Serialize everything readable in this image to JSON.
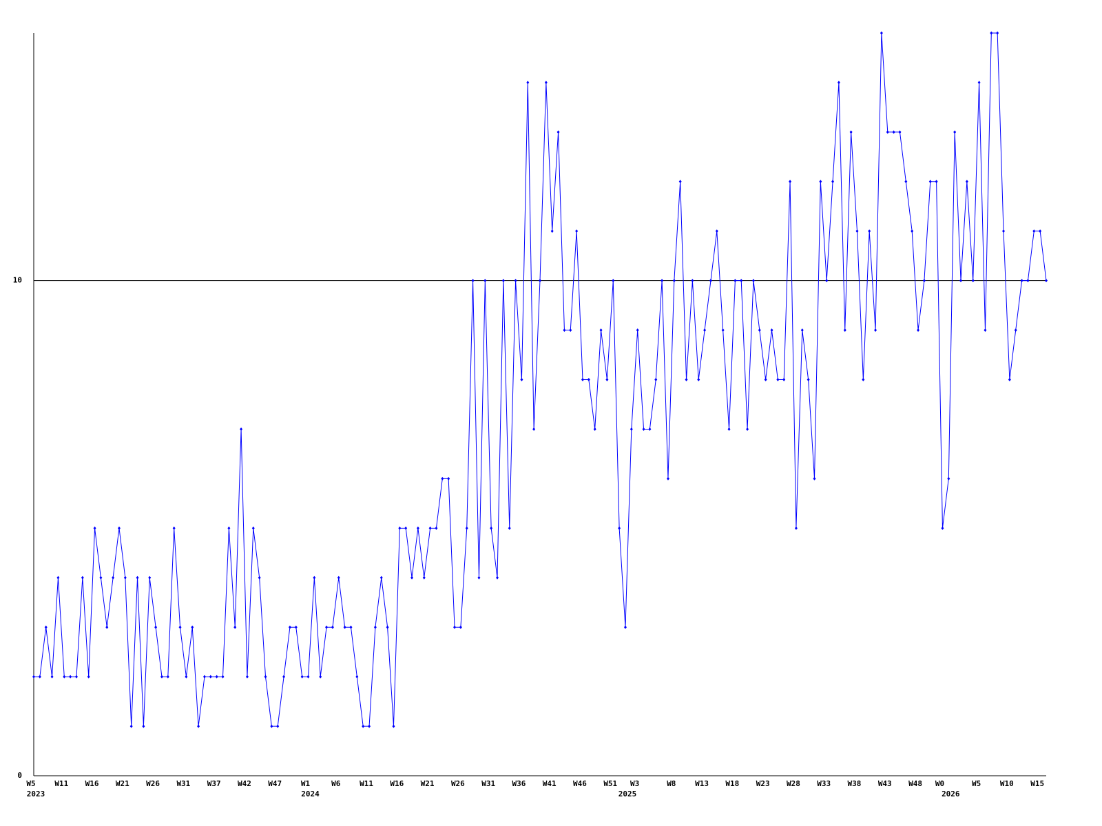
{
  "chart_data": {
    "type": "line",
    "categories": [
      "W5",
      null,
      null,
      null,
      null,
      "W11",
      null,
      null,
      null,
      null,
      "W16",
      null,
      null,
      null,
      null,
      "W21",
      null,
      null,
      null,
      null,
      "W26",
      null,
      null,
      null,
      null,
      "W31",
      null,
      null,
      null,
      null,
      "W37",
      null,
      null,
      null,
      null,
      "W42",
      null,
      null,
      null,
      null,
      "W47",
      null,
      null,
      null,
      null,
      "W1",
      null,
      null,
      null,
      null,
      "W6",
      null,
      null,
      null,
      null,
      "W11",
      null,
      null,
      null,
      null,
      "W16",
      null,
      null,
      null,
      null,
      "W21",
      null,
      null,
      null,
      null,
      "W26",
      null,
      null,
      null,
      null,
      "W31",
      null,
      null,
      null,
      null,
      "W36",
      null,
      null,
      null,
      null,
      "W41",
      null,
      null,
      null,
      null,
      "W46",
      null,
      null,
      null,
      null,
      "W51",
      null,
      null,
      null,
      "W3",
      null,
      null,
      null,
      null,
      null,
      "W8",
      null,
      null,
      null,
      null,
      "W13",
      null,
      null,
      null,
      null,
      "W18",
      null,
      null,
      null,
      null,
      "W23",
      null,
      null,
      null,
      null,
      "W28",
      null,
      null,
      null,
      null,
      "W33",
      null,
      null,
      null,
      null,
      "W38",
      null,
      null,
      null,
      null,
      "W43",
      null,
      null,
      null,
      null,
      "W48",
      null,
      null,
      null,
      "W0",
      null,
      null,
      null,
      null,
      null,
      "W5",
      null,
      null,
      null,
      null,
      "W10",
      null,
      null,
      null,
      null,
      "W15",
      null
    ],
    "years": [
      "2023",
      null,
      null,
      null,
      null,
      null,
      null,
      null,
      null,
      null,
      null,
      null,
      null,
      null,
      null,
      null,
      null,
      null,
      null,
      null,
      null,
      null,
      null,
      null,
      null,
      null,
      null,
      null,
      null,
      null,
      null,
      null,
      null,
      null,
      null,
      null,
      null,
      null,
      null,
      null,
      null,
      null,
      null,
      null,
      null,
      "2024",
      null,
      null,
      null,
      null,
      null,
      null,
      null,
      null,
      null,
      null,
      null,
      null,
      null,
      null,
      null,
      null,
      null,
      null,
      null,
      null,
      null,
      null,
      null,
      null,
      null,
      null,
      null,
      null,
      null,
      null,
      null,
      null,
      null,
      null,
      null,
      null,
      null,
      null,
      null,
      null,
      null,
      null,
      null,
      null,
      null,
      null,
      null,
      null,
      null,
      null,
      null,
      "2025",
      null,
      null,
      null,
      null,
      null,
      null,
      null,
      null,
      null,
      null,
      null,
      null,
      null,
      null,
      null,
      null,
      null,
      null,
      null,
      null,
      null,
      null,
      null,
      null,
      null,
      null,
      null,
      null,
      null,
      null,
      null,
      null,
      null,
      null,
      null,
      null,
      null,
      null,
      null,
      null,
      null,
      null,
      null,
      null,
      null,
      null,
      null,
      null,
      null,
      null,
      null,
      null,
      "2026",
      null,
      null,
      null,
      null,
      null,
      null,
      null,
      null,
      null,
      null,
      null,
      null,
      null,
      null,
      null,
      null
    ],
    "values": [
      2,
      2,
      3,
      2,
      4,
      2,
      2,
      2,
      4,
      2,
      5,
      4,
      3,
      4,
      5,
      4,
      1,
      4,
      1,
      4,
      3,
      2,
      2,
      5,
      3,
      2,
      3,
      1,
      2,
      2,
      2,
      2,
      5,
      3,
      7,
      2,
      5,
      4,
      2,
      1,
      1,
      2,
      3,
      3,
      2,
      2,
      4,
      2,
      3,
      3,
      4,
      3,
      3,
      2,
      1,
      1,
      3,
      4,
      3,
      1,
      5,
      5,
      4,
      5,
      4,
      5,
      5,
      6,
      6,
      3,
      3,
      5,
      10,
      4,
      10,
      5,
      4,
      10,
      5,
      10,
      8,
      14,
      7,
      10,
      14,
      11,
      13,
      9,
      9,
      11,
      8,
      8,
      7,
      9,
      8,
      10,
      5,
      3,
      7,
      9,
      7,
      7,
      8,
      10,
      6,
      10,
      12,
      8,
      10,
      8,
      9,
      10,
      11,
      9,
      7,
      10,
      10,
      7,
      10,
      9,
      8,
      9,
      8,
      8,
      12,
      5,
      9,
      8,
      6,
      12,
      10,
      12,
      14,
      9,
      13,
      11,
      8,
      11,
      9,
      15,
      13,
      13,
      13,
      12,
      11,
      9,
      10,
      12,
      12,
      5,
      6,
      13,
      10,
      12,
      10,
      14,
      9,
      15,
      15,
      11,
      8,
      9,
      10,
      10,
      11,
      11,
      10
    ],
    "color": "#0000ff",
    "ylim": [
      0,
      15
    ],
    "yticks": [
      0,
      10
    ],
    "grid": true
  }
}
